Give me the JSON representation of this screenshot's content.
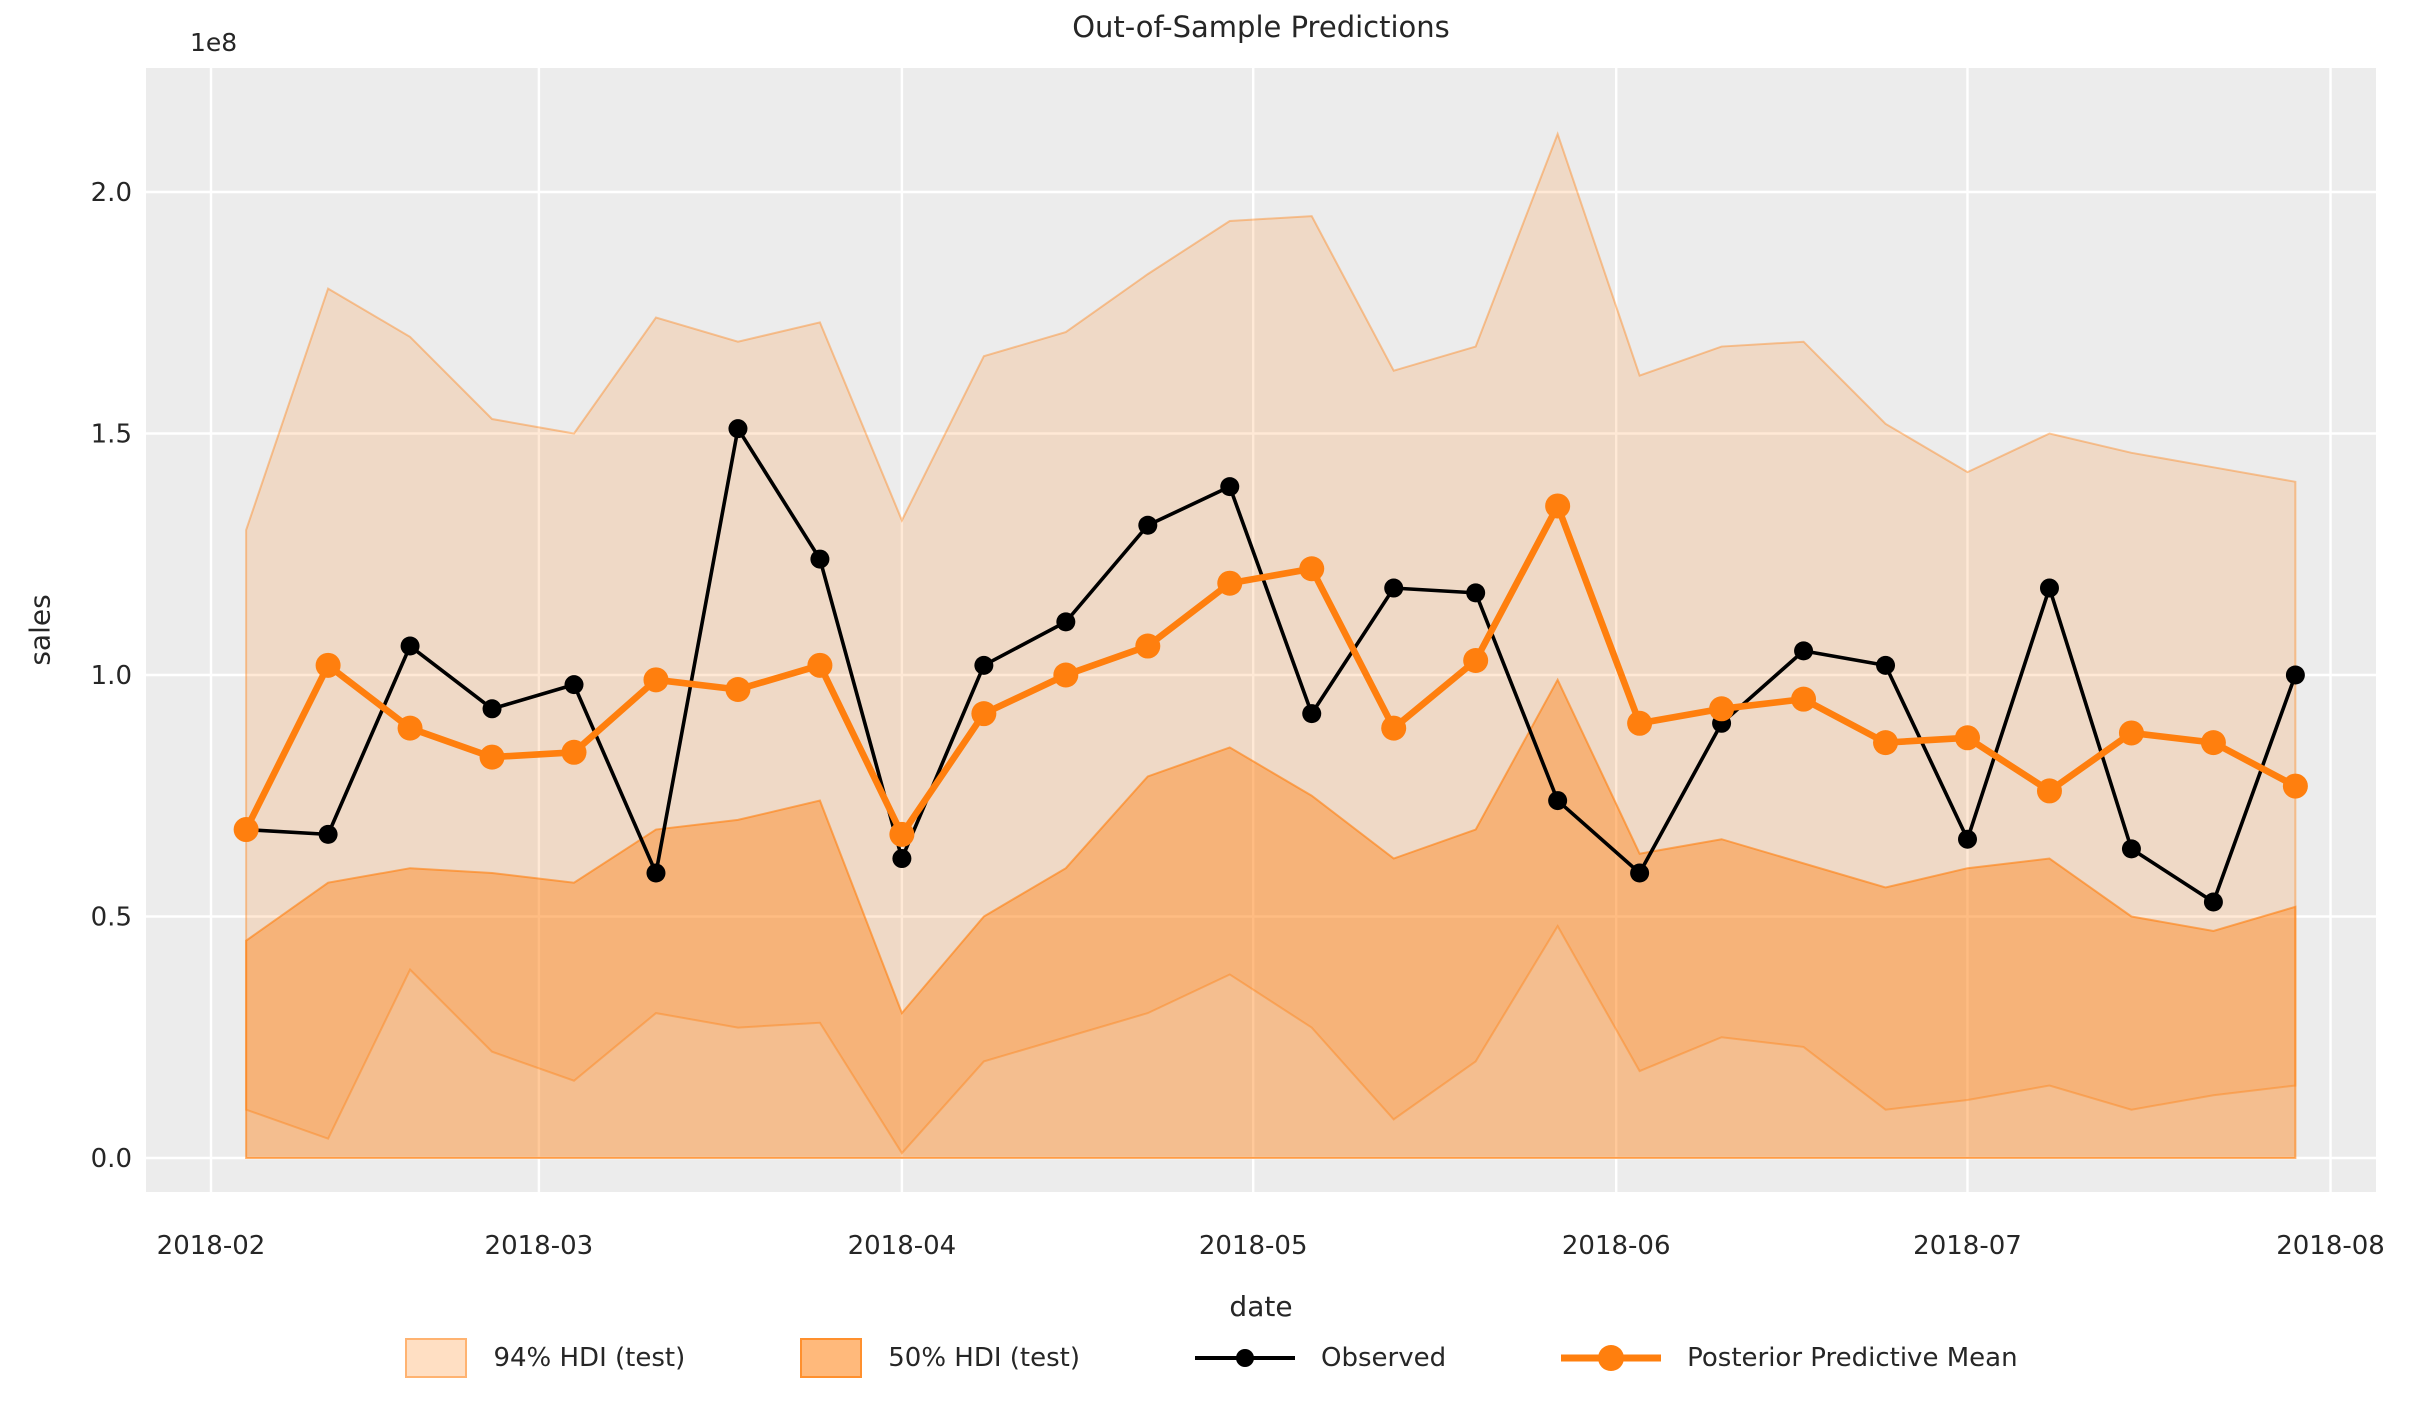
{
  "colors": {
    "accent_orange": "#ff7f0e",
    "observed_black": "#000000",
    "axes_background": "#ececec",
    "figure_background": "#ffffff",
    "grid": "#ffffff",
    "text": "#262626",
    "band_94_fill": "rgba(255,127,14,0.17)",
    "band_94_edge": "rgba(255,127,14,0.40)",
    "band_50_fill": "rgba(255,127,14,0.42)",
    "band_50_edge": "rgba(255,127,14,0.60)"
  },
  "chart_data": {
    "type": "line",
    "title": "Out-of-Sample Predictions",
    "xlabel": "date",
    "ylabel": "sales",
    "y_offset_label": "1e8",
    "y_units": "1e8",
    "grid": "on",
    "legend_position": "bottom",
    "ylim": [
      -0.07,
      2.26
    ],
    "yticks": [
      {
        "v": 0.0,
        "label": "0.0"
      },
      {
        "v": 0.5,
        "label": "0.5"
      },
      {
        "v": 1.0,
        "label": "1.0"
      },
      {
        "v": 1.5,
        "label": "1.5"
      },
      {
        "v": 2.0,
        "label": "2.0"
      }
    ],
    "xticks": [
      {
        "day": 0,
        "label": "2018-02"
      },
      {
        "day": 28,
        "label": "2018-03"
      },
      {
        "day": 59,
        "label": "2018-04"
      },
      {
        "day": 89,
        "label": "2018-05"
      },
      {
        "day": 120,
        "label": "2018-06"
      },
      {
        "day": 150,
        "label": "2018-07"
      },
      {
        "day": 181,
        "label": "2018-08"
      }
    ],
    "x": [
      "2018-02-04",
      "2018-02-11",
      "2018-02-18",
      "2018-02-25",
      "2018-03-04",
      "2018-03-11",
      "2018-03-18",
      "2018-03-25",
      "2018-04-01",
      "2018-04-08",
      "2018-04-15",
      "2018-04-22",
      "2018-04-29",
      "2018-05-06",
      "2018-05-13",
      "2018-05-20",
      "2018-05-27",
      "2018-06-03",
      "2018-06-10",
      "2018-06-17",
      "2018-06-24",
      "2018-07-01",
      "2018-07-08",
      "2018-07-15",
      "2018-07-22",
      "2018-07-29"
    ],
    "series": [
      {
        "name": "Observed",
        "color": "#000000",
        "values": [
          0.68,
          0.67,
          1.06,
          0.93,
          0.98,
          0.59,
          1.51,
          1.24,
          0.62,
          1.02,
          1.11,
          1.31,
          1.39,
          0.92,
          1.18,
          1.17,
          0.74,
          0.59,
          0.9,
          1.05,
          1.02,
          0.66,
          1.18,
          0.64,
          0.53,
          1.0
        ]
      },
      {
        "name": "Posterior Predictive Mean",
        "color": "#ff7f0e",
        "values": [
          0.68,
          1.02,
          0.89,
          0.83,
          0.84,
          0.99,
          0.97,
          1.02,
          0.67,
          0.92,
          1.0,
          1.06,
          1.19,
          1.22,
          0.89,
          1.03,
          1.35,
          0.9,
          0.93,
          0.95,
          0.86,
          0.87,
          0.76,
          0.88,
          0.86,
          0.77
        ]
      }
    ],
    "bands": [
      {
        "name": "94% HDI (test)",
        "lower": [
          0.1,
          0.04,
          0.39,
          0.22,
          0.16,
          0.3,
          0.27,
          0.28,
          0.01,
          0.2,
          0.25,
          0.3,
          0.38,
          0.27,
          0.08,
          0.2,
          0.48,
          0.18,
          0.25,
          0.23,
          0.1,
          0.12,
          0.15,
          0.1,
          0.13,
          0.15
        ],
        "upper": [
          1.3,
          1.8,
          1.7,
          1.53,
          1.5,
          1.74,
          1.69,
          1.73,
          1.32,
          1.66,
          1.71,
          1.83,
          1.94,
          1.95,
          1.63,
          1.68,
          2.12,
          1.62,
          1.68,
          1.69,
          1.52,
          1.42,
          1.5,
          1.46,
          1.43,
          1.4
        ]
      },
      {
        "name": "50% HDI (test)",
        "lower": [
          0.45,
          0.57,
          0.6,
          0.59,
          0.57,
          0.68,
          0.7,
          0.74,
          0.3,
          0.5,
          0.6,
          0.79,
          0.85,
          0.75,
          0.62,
          0.68,
          0.99,
          0.63,
          0.66,
          0.61,
          0.56,
          0.6,
          0.62,
          0.5,
          0.47,
          0.52
        ]
      }
    ],
    "legend": {
      "items": [
        {
          "label": "94% HDI (test)"
        },
        {
          "label": "50% HDI (test)"
        },
        {
          "label": "Observed"
        },
        {
          "label": "Posterior Predictive Mean"
        }
      ]
    }
  }
}
